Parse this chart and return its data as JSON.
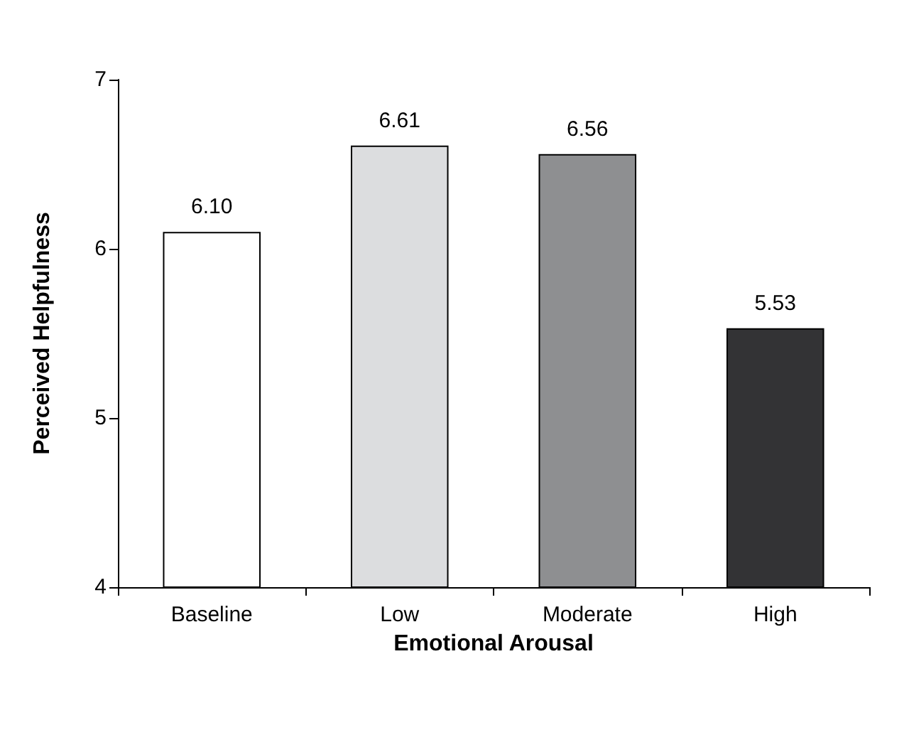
{
  "chart_data": {
    "type": "bar",
    "xlabel": "Emotional Arousal",
    "ylabel": "Perceived Helpfulness",
    "categories": [
      "Baseline",
      "Low",
      "Moderate",
      "High"
    ],
    "values": [
      6.1,
      6.61,
      6.56,
      5.53
    ],
    "colors": [
      "#ffffff",
      "#dcdddf",
      "#8e8f91",
      "#333335"
    ],
    "value_labels": [
      "6.10",
      "6.61",
      "6.56",
      "5.53"
    ],
    "ylim": [
      4,
      7
    ],
    "yticks": [
      4,
      5,
      6,
      7
    ]
  }
}
